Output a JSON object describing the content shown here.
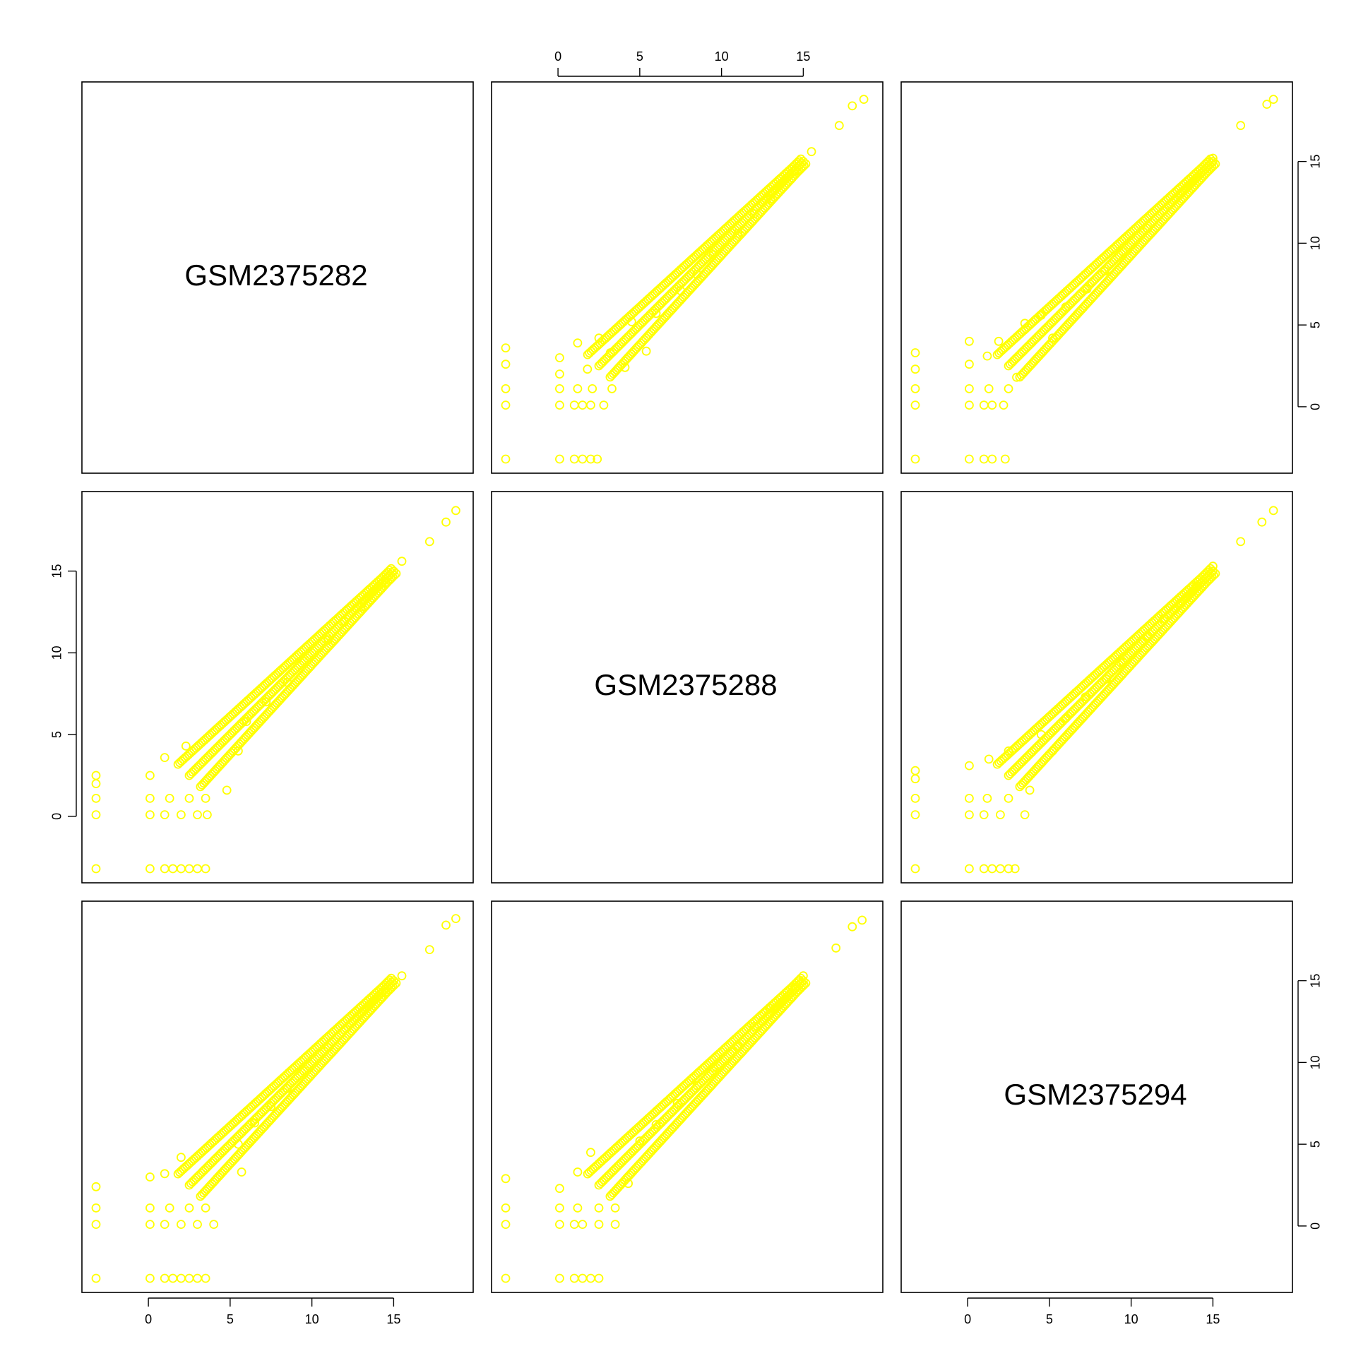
{
  "chart_data": {
    "type": "scatter",
    "layout": "pairs-matrix",
    "title": "",
    "variables": [
      "GSM2375282",
      "GSM2375288",
      "GSM2375294"
    ],
    "axis_range": [
      -3.2,
      19
    ],
    "ticks": [
      0,
      5,
      10,
      15
    ],
    "tick_labels": [
      "0",
      "5",
      "10",
      "15"
    ],
    "point_color": "#ffff00",
    "point_shape": "open-circle",
    "grid": false,
    "legend": "none",
    "axes": {
      "top": [
        "GSM2375288"
      ],
      "bottom": [
        "GSM2375282",
        "GSM2375294"
      ],
      "left": [
        "GSM2375288"
      ],
      "right": [
        "GSM2375282",
        "GSM2375294"
      ]
    },
    "panels": [
      {
        "row": 0,
        "col": 1,
        "x_var": "GSM2375288",
        "y_var": "GSM2375282",
        "points": [
          [
            -3.2,
            -3.2
          ],
          [
            0.1,
            -3.2
          ],
          [
            1.0,
            -3.2
          ],
          [
            1.5,
            -3.2
          ],
          [
            2.0,
            -3.2
          ],
          [
            2.4,
            -3.2
          ],
          [
            -3.2,
            0.1
          ],
          [
            0.1,
            0.1
          ],
          [
            1.0,
            0.1
          ],
          [
            1.5,
            0.1
          ],
          [
            2.0,
            0.1
          ],
          [
            2.8,
            0.1
          ],
          [
            -3.2,
            1.1
          ],
          [
            0.1,
            1.1
          ],
          [
            1.2,
            1.1
          ],
          [
            2.1,
            1.1
          ],
          [
            3.3,
            1.1
          ],
          [
            0.1,
            2.0
          ],
          [
            1.8,
            2.3
          ],
          [
            4.1,
            2.4
          ],
          [
            -3.2,
            2.6
          ],
          [
            0.1,
            3.0
          ],
          [
            -3.2,
            3.6
          ],
          [
            1.2,
            3.9
          ],
          [
            2.5,
            4.2
          ],
          [
            3.2,
            3.3
          ],
          [
            5.4,
            3.4
          ],
          [
            4.5,
            5.2
          ],
          [
            6.0,
            5.7
          ],
          [
            7.5,
            7.1
          ],
          [
            8.5,
            8.1
          ],
          [
            9.5,
            9.3
          ],
          [
            11.0,
            10.6
          ],
          [
            12.0,
            11.8
          ],
          [
            13.0,
            12.7
          ],
          [
            14.5,
            14.4
          ],
          [
            15.5,
            15.6
          ],
          [
            17.2,
            17.2
          ],
          [
            18.0,
            18.4
          ],
          [
            18.7,
            18.8
          ]
        ]
      },
      {
        "row": 0,
        "col": 2,
        "x_var": "GSM2375294",
        "y_var": "GSM2375282",
        "points": [
          [
            -3.2,
            -3.2
          ],
          [
            0.1,
            -3.2
          ],
          [
            1.0,
            -3.2
          ],
          [
            1.5,
            -3.2
          ],
          [
            2.3,
            -3.2
          ],
          [
            -3.2,
            0.1
          ],
          [
            0.1,
            0.1
          ],
          [
            1.0,
            0.1
          ],
          [
            1.5,
            0.1
          ],
          [
            2.2,
            0.1
          ],
          [
            -3.2,
            1.1
          ],
          [
            0.1,
            1.1
          ],
          [
            1.3,
            1.1
          ],
          [
            2.5,
            1.1
          ],
          [
            3.0,
            1.8
          ],
          [
            -3.2,
            2.3
          ],
          [
            0.1,
            2.6
          ],
          [
            1.2,
            3.1
          ],
          [
            1.9,
            4.0
          ],
          [
            -3.2,
            3.3
          ],
          [
            0.1,
            4.0
          ],
          [
            3.5,
            5.1
          ],
          [
            5.2,
            4.2
          ],
          [
            4.5,
            5.6
          ],
          [
            6.0,
            6.1
          ],
          [
            7.3,
            7.2
          ],
          [
            8.4,
            8.3
          ],
          [
            9.5,
            9.5
          ],
          [
            11.0,
            10.9
          ],
          [
            12.0,
            12.0
          ],
          [
            13.0,
            13.0
          ],
          [
            14.0,
            14.0
          ],
          [
            15.0,
            15.2
          ],
          [
            16.7,
            17.2
          ],
          [
            18.3,
            18.5
          ],
          [
            18.7,
            18.8
          ]
        ]
      },
      {
        "row": 1,
        "col": 0,
        "x_var": "GSM2375282",
        "y_var": "GSM2375288",
        "points": [
          [
            -3.2,
            -3.2
          ],
          [
            0.1,
            -3.2
          ],
          [
            1.0,
            -3.2
          ],
          [
            1.5,
            -3.2
          ],
          [
            2.0,
            -3.2
          ],
          [
            2.5,
            -3.2
          ],
          [
            3.0,
            -3.2
          ],
          [
            3.5,
            -3.2
          ],
          [
            -3.2,
            0.1
          ],
          [
            0.1,
            0.1
          ],
          [
            1.0,
            0.1
          ],
          [
            2.0,
            0.1
          ],
          [
            3.0,
            0.1
          ],
          [
            3.6,
            0.1
          ],
          [
            -3.2,
            1.1
          ],
          [
            0.1,
            1.1
          ],
          [
            1.3,
            1.1
          ],
          [
            2.5,
            1.1
          ],
          [
            3.5,
            1.1
          ],
          [
            -3.2,
            2.0
          ],
          [
            0.1,
            2.5
          ],
          [
            -3.2,
            2.5
          ],
          [
            1.0,
            3.6
          ],
          [
            2.3,
            4.3
          ],
          [
            4.8,
            1.6
          ],
          [
            5.5,
            4.0
          ],
          [
            6.0,
            5.8
          ],
          [
            7.2,
            7.0
          ],
          [
            8.5,
            8.2
          ],
          [
            9.5,
            9.5
          ],
          [
            11.0,
            10.8
          ],
          [
            12.0,
            11.9
          ],
          [
            13.0,
            12.8
          ],
          [
            14.5,
            14.3
          ],
          [
            15.5,
            15.6
          ],
          [
            17.2,
            16.8
          ],
          [
            18.2,
            18.0
          ],
          [
            18.8,
            18.7
          ]
        ]
      },
      {
        "row": 1,
        "col": 2,
        "x_var": "GSM2375294",
        "y_var": "GSM2375288",
        "points": [
          [
            -3.2,
            -3.2
          ],
          [
            0.1,
            -3.2
          ],
          [
            1.0,
            -3.2
          ],
          [
            1.5,
            -3.2
          ],
          [
            2.0,
            -3.2
          ],
          [
            2.5,
            -3.2
          ],
          [
            2.9,
            -3.2
          ],
          [
            -3.2,
            0.1
          ],
          [
            0.1,
            0.1
          ],
          [
            1.0,
            0.1
          ],
          [
            2.0,
            0.1
          ],
          [
            3.5,
            0.1
          ],
          [
            -3.2,
            1.1
          ],
          [
            0.1,
            1.1
          ],
          [
            1.2,
            1.1
          ],
          [
            2.5,
            1.1
          ],
          [
            3.8,
            1.6
          ],
          [
            -3.2,
            2.3
          ],
          [
            0.1,
            3.1
          ],
          [
            -3.2,
            2.8
          ],
          [
            1.3,
            3.5
          ],
          [
            2.5,
            4.0
          ],
          [
            5.2,
            4.0
          ],
          [
            4.5,
            5.0
          ],
          [
            6.0,
            6.0
          ],
          [
            7.2,
            7.3
          ],
          [
            8.5,
            8.4
          ],
          [
            9.5,
            9.4
          ],
          [
            11.0,
            11.0
          ],
          [
            12.0,
            12.1
          ],
          [
            13.0,
            13.0
          ],
          [
            14.0,
            14.1
          ],
          [
            15.0,
            15.3
          ],
          [
            16.7,
            16.8
          ],
          [
            18.0,
            18.0
          ],
          [
            18.7,
            18.7
          ]
        ]
      },
      {
        "row": 2,
        "col": 0,
        "x_var": "GSM2375282",
        "y_var": "GSM2375294",
        "points": [
          [
            -3.2,
            -3.2
          ],
          [
            0.1,
            -3.2
          ],
          [
            1.0,
            -3.2
          ],
          [
            1.5,
            -3.2
          ],
          [
            2.0,
            -3.2
          ],
          [
            2.5,
            -3.2
          ],
          [
            3.0,
            -3.2
          ],
          [
            3.5,
            -3.2
          ],
          [
            -3.2,
            0.1
          ],
          [
            0.1,
            0.1
          ],
          [
            1.0,
            0.1
          ],
          [
            2.0,
            0.1
          ],
          [
            3.0,
            0.1
          ],
          [
            4.0,
            0.1
          ],
          [
            -3.2,
            1.1
          ],
          [
            0.1,
            1.1
          ],
          [
            1.3,
            1.1
          ],
          [
            2.5,
            1.1
          ],
          [
            3.5,
            1.1
          ],
          [
            -3.2,
            2.4
          ],
          [
            0.1,
            3.0
          ],
          [
            1.0,
            3.2
          ],
          [
            2.0,
            4.2
          ],
          [
            5.7,
            3.3
          ],
          [
            5.5,
            5.0
          ],
          [
            6.5,
            6.3
          ],
          [
            7.5,
            7.3
          ],
          [
            8.5,
            8.4
          ],
          [
            9.5,
            9.5
          ],
          [
            11.0,
            10.9
          ],
          [
            12.0,
            12.0
          ],
          [
            13.0,
            13.0
          ],
          [
            14.5,
            14.3
          ],
          [
            15.5,
            15.3
          ],
          [
            17.2,
            16.9
          ],
          [
            18.2,
            18.4
          ],
          [
            18.8,
            18.8
          ]
        ]
      },
      {
        "row": 2,
        "col": 1,
        "x_var": "GSM2375288",
        "y_var": "GSM2375294",
        "points": [
          [
            -3.2,
            -3.2
          ],
          [
            0.1,
            -3.2
          ],
          [
            1.0,
            -3.2
          ],
          [
            1.5,
            -3.2
          ],
          [
            2.0,
            -3.2
          ],
          [
            2.5,
            -3.2
          ],
          [
            -3.2,
            0.1
          ],
          [
            0.1,
            0.1
          ],
          [
            1.0,
            0.1
          ],
          [
            1.5,
            0.1
          ],
          [
            2.5,
            0.1
          ],
          [
            3.5,
            0.1
          ],
          [
            -3.2,
            1.1
          ],
          [
            0.1,
            1.1
          ],
          [
            1.2,
            1.1
          ],
          [
            2.5,
            1.1
          ],
          [
            3.5,
            1.1
          ],
          [
            0.1,
            2.3
          ],
          [
            -3.2,
            2.9
          ],
          [
            1.2,
            3.3
          ],
          [
            2.0,
            4.5
          ],
          [
            4.3,
            2.6
          ],
          [
            5.0,
            5.2
          ],
          [
            6.0,
            6.2
          ],
          [
            7.3,
            7.5
          ],
          [
            8.5,
            8.6
          ],
          [
            9.5,
            9.7
          ],
          [
            11.0,
            11.0
          ],
          [
            12.0,
            12.2
          ],
          [
            13.0,
            13.3
          ],
          [
            14.5,
            14.6
          ],
          [
            15.0,
            15.3
          ],
          [
            17.0,
            17.0
          ],
          [
            18.0,
            18.3
          ],
          [
            18.6,
            18.7
          ]
        ]
      }
    ]
  },
  "panel_labels": {
    "p00": "GSM2375282",
    "p11": "GSM2375288",
    "p22": "GSM2375294"
  }
}
